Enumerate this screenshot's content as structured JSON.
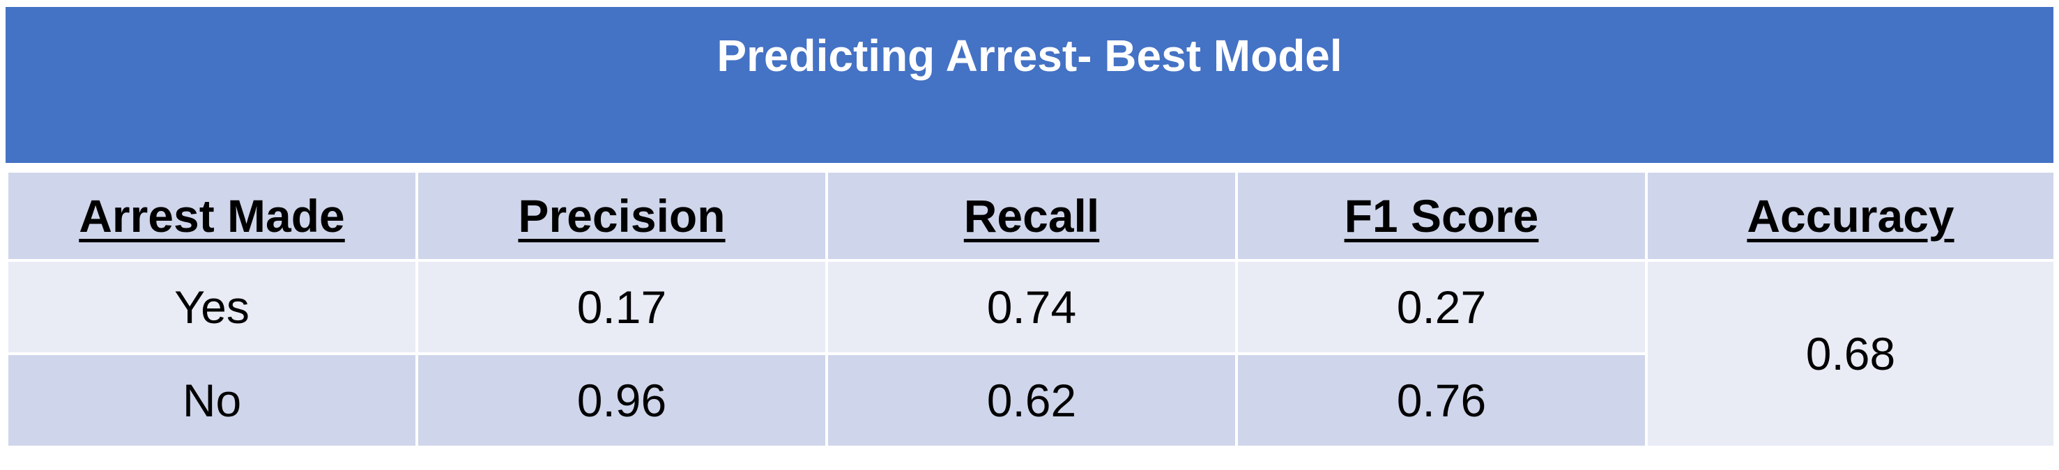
{
  "title": "Predicting Arrest- Best Model",
  "table": {
    "headers": {
      "arrest_made": "Arrest Made",
      "precision": "Precision",
      "recall": "Recall",
      "f1_score": "F1 Score",
      "accuracy": "Accuracy"
    },
    "rows": [
      {
        "arrest_made": "Yes",
        "precision": "0.17",
        "recall": "0.74",
        "f1_score": "0.27"
      },
      {
        "arrest_made": "No",
        "precision": "0.96",
        "recall": "0.62",
        "f1_score": "0.76"
      }
    ],
    "accuracy": "0.68"
  },
  "colors": {
    "title_bg": "#4472C4",
    "header_bg": "#CFD5EA",
    "band_light": "#E9EBF5",
    "band_dark": "#CFD5EA"
  }
}
